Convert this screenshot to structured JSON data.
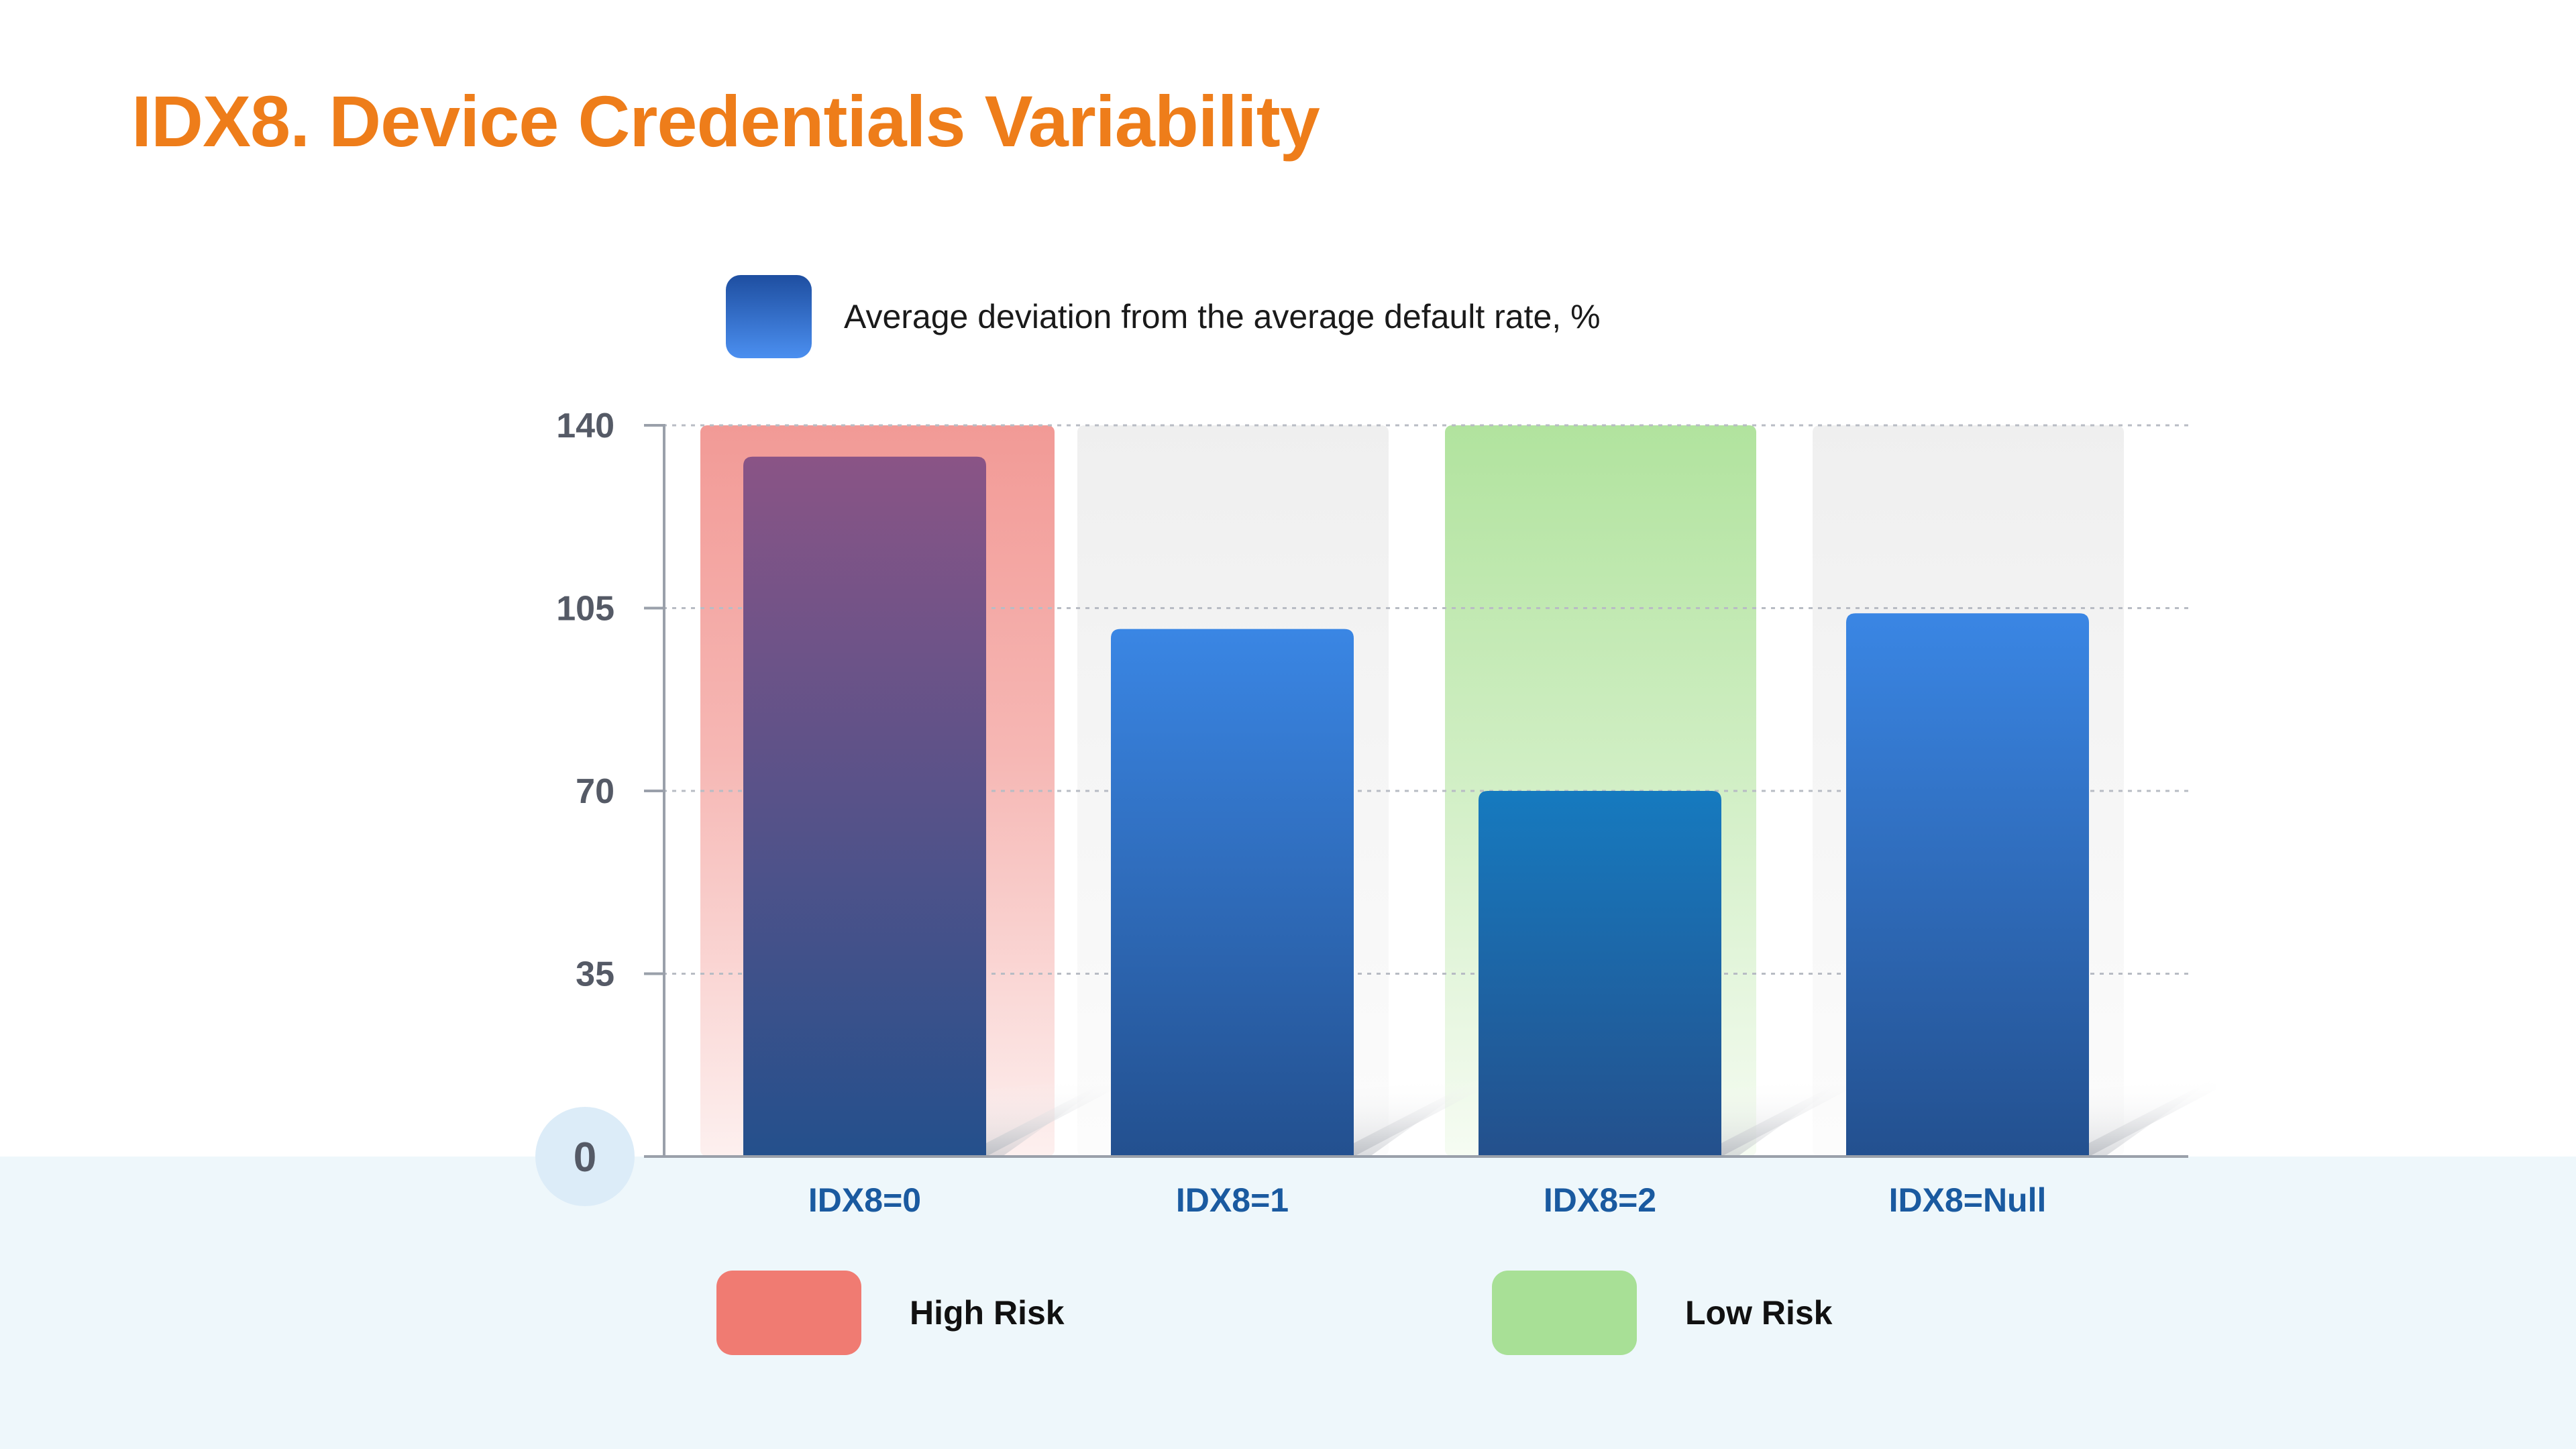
{
  "title": "IDX8. Device Credentials Variability",
  "legend_series_label": "Average deviation from the average default rate, %",
  "risk_legend": {
    "high_label": "High Risk",
    "low_label": "Low Risk"
  },
  "colors": {
    "title": "#ee7d1a",
    "high_risk": "#f07b72",
    "low_risk": "#a8e096",
    "bar_blue": "#3a86e4",
    "axis_label": "#555a66",
    "category_label": "#1a5aa0"
  },
  "chart_data": {
    "type": "bar",
    "categories": [
      "IDX8=0",
      "IDX8=1",
      "IDX8=2",
      "IDX8=Null"
    ],
    "series": [
      {
        "name": "Average deviation from the average default rate, %",
        "values": [
          134,
          101,
          70,
          104
        ]
      }
    ],
    "category_highlight": [
      "high",
      "neutral",
      "low",
      "neutral"
    ],
    "ylim": [
      0,
      140
    ],
    "yticks": [
      0,
      35,
      70,
      105,
      140
    ],
    "grid": true,
    "legend": "top",
    "xlabel": "",
    "ylabel": ""
  }
}
